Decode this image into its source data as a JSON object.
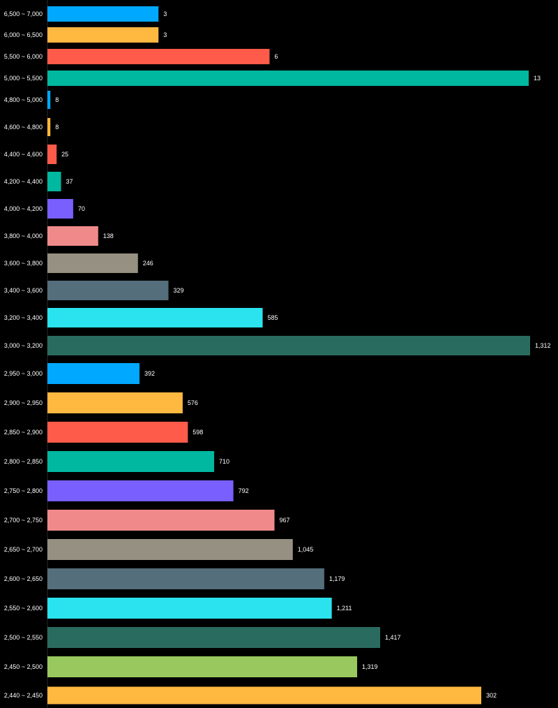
{
  "chart_data": {
    "type": "bar",
    "orientation": "horizontal",
    "grid": false,
    "title": "",
    "categories": [
      "6,500 ~ 7,000",
      "6,000 ~ 6,500",
      "5,500 ~ 6,000",
      "5,000 ~ 5,500",
      "4,800 ~ 5,000",
      "4,600 ~ 4,800",
      "4,400 ~ 4,600",
      "4,200 ~ 4,400",
      "4,000 ~ 4,200",
      "3,800 ~ 4,000",
      "3,600 ~ 3,800",
      "3,400 ~ 3,600",
      "3,200 ~ 3,400",
      "3,000 ~ 3,200",
      "2,950 ~ 3,000",
      "2,900 ~ 2,950",
      "2,850 ~ 2,900",
      "2,800 ~ 2,850",
      "2,750 ~ 2,800",
      "2,700 ~ 2,750",
      "2,650 ~ 2,700",
      "2,600 ~ 2,650",
      "2,550 ~ 2,600",
      "2,500 ~ 2,550",
      "2,450 ~ 2,500",
      "2,440 ~ 2,450"
    ],
    "groups": [
      {
        "start": 0,
        "count": 4,
        "max": 13
      },
      {
        "start": 4,
        "count": 10,
        "max": 1312
      },
      {
        "start": 14,
        "count": 11,
        "max": 1417
      },
      {
        "start": 25,
        "count": 1,
        "max": 302
      }
    ],
    "values": [
      3,
      3,
      6,
      13,
      8,
      8,
      25,
      37,
      70,
      138,
      246,
      329,
      585,
      1312,
      392,
      576,
      598,
      710,
      792,
      967,
      1045,
      1179,
      1211,
      1417,
      1319,
      302
    ],
    "value_labels": [
      "3",
      "3",
      "6",
      "13",
      "8",
      "8",
      "25",
      "37",
      "70",
      "138",
      "246",
      "329",
      "585",
      "1,312",
      "392",
      "576",
      "598",
      "710",
      "792",
      "967",
      "1,045",
      "1,179",
      "1,211",
      "1,417",
      "1,319",
      "302"
    ],
    "colors": [
      "#00a8ff",
      "#ffb840",
      "#ff5b4a",
      "#00b89f",
      "#00a8ff",
      "#ffb840",
      "#ff5b4a",
      "#00b89f",
      "#7a5fff",
      "#f08a8a",
      "#959081",
      "#546e7b",
      "#2ae3ee",
      "#2a6b5f",
      "#00a8ff",
      "#ffb840",
      "#ff5b4a",
      "#00b89f",
      "#7a5fff",
      "#f08a8a",
      "#959081",
      "#546e7b",
      "#2ae3ee",
      "#2a6b5f",
      "#99c95e",
      "#ffb840"
    ]
  }
}
